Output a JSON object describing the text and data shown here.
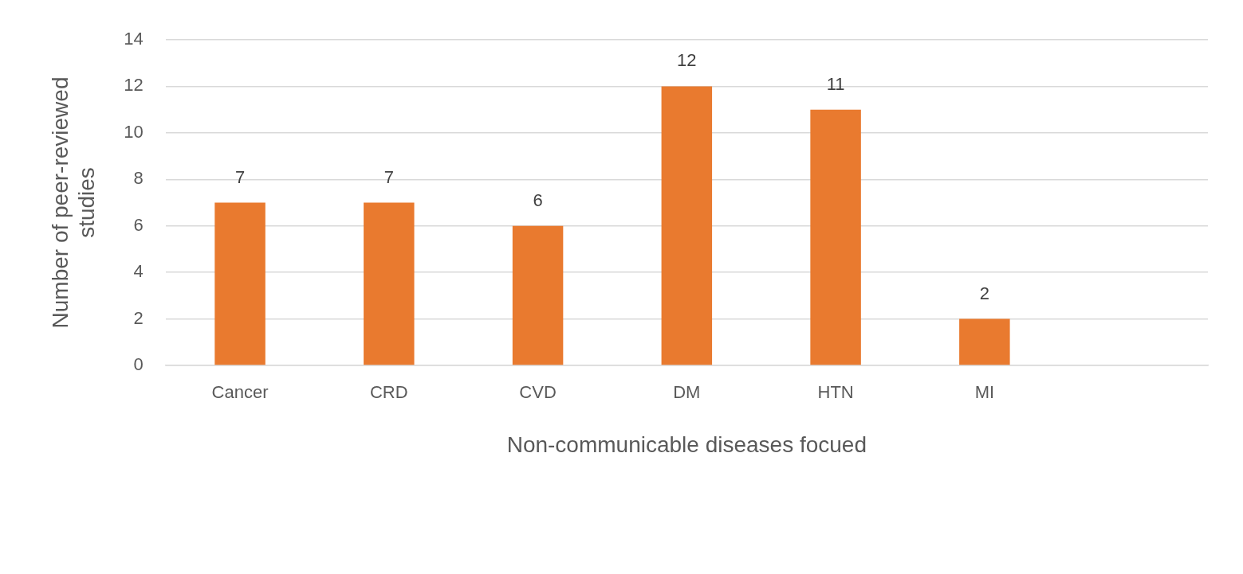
{
  "chart_data": {
    "type": "bar",
    "xlabel": "Non-communicable diseases focued",
    "ylabel": "Number of peer-reviewed studies",
    "categories": [
      "Cancer",
      "CRD",
      "CVD",
      "DM",
      "HTN",
      "MI",
      null
    ],
    "values": [
      7,
      7,
      6,
      12,
      11,
      2,
      null
    ],
    "color": "#e97a2f",
    "ylim": [
      0,
      14
    ],
    "yticks": [
      0,
      2,
      4,
      6,
      8,
      10,
      12,
      14
    ],
    "grid": "y",
    "data_labels": true,
    "legend": false
  }
}
